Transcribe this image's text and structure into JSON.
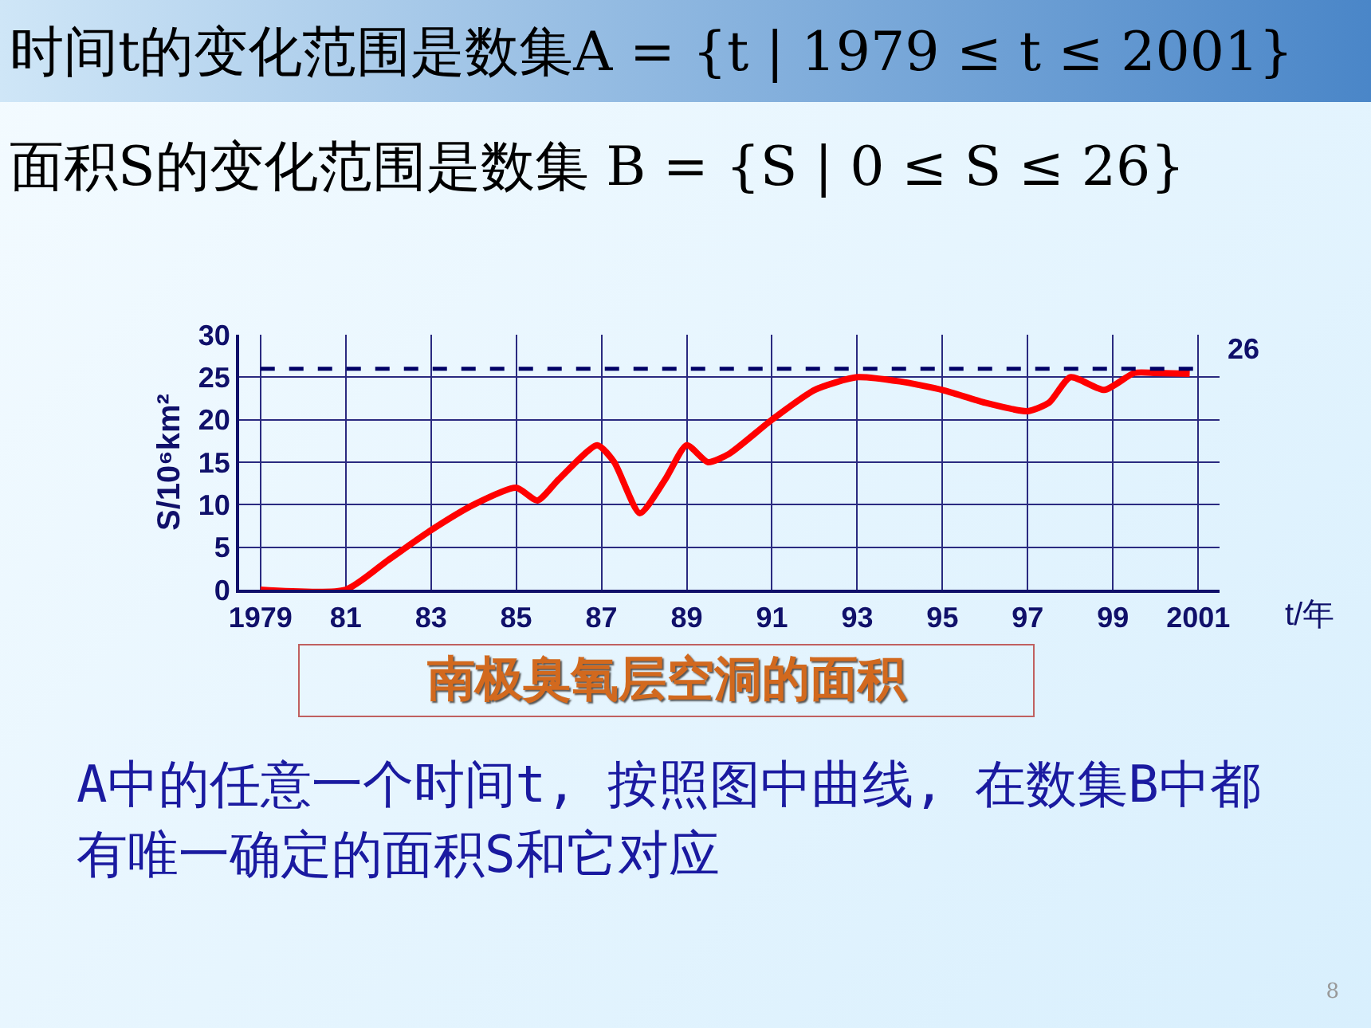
{
  "chart_data": {
    "type": "line",
    "title": "南极臭氧层空洞的面积",
    "xlabel": "t/年",
    "ylabel": "S/10⁶km²",
    "annotations": [
      "时间t的变化范围是数集A = {t | 1979 ≤ t ≤ 2001}",
      "面积S的变化范围是数集 B = {S | 0 ≤ S ≤ 26}",
      "A中的任意一个时间t, 按照图中曲线, 在数集B中都有唯一确定的面积S和它对应",
      "8"
    ],
    "series": [
      {
        "color": "#ff0000",
        "x": [
          1979,
          1981,
          1982,
          1983,
          1984,
          1985,
          1985.5,
          1986,
          1986.9,
          1987.3,
          1987.9,
          1988.5,
          1989,
          1989.5,
          1990,
          1991,
          1992,
          1993,
          1994,
          1995,
          1996,
          1997,
          1997.5,
          1998,
          1998.8,
          1999.5,
          2000,
          2000.8
        ],
        "values": [
          0,
          0,
          3.5,
          7,
          10,
          12,
          10.5,
          13,
          17,
          15,
          9,
          13,
          17,
          15,
          16,
          20,
          23.5,
          25,
          24.5,
          23.5,
          22,
          21,
          22,
          25,
          23.5,
          25.5,
          25.5,
          25.4
        ]
      }
    ],
    "xlim": [
      1978.5,
      2001.5
    ],
    "ylim": [
      0,
      30
    ],
    "xticks": [
      1979,
      {
        "value": 1981,
        "label": "81"
      },
      {
        "value": 1983,
        "label": "83"
      },
      {
        "value": 1985,
        "label": "85"
      },
      {
        "value": 1987,
        "label": "87"
      },
      {
        "value": 1989,
        "label": "89"
      },
      {
        "value": 1991,
        "label": "91"
      },
      {
        "value": 1993,
        "label": "93"
      },
      {
        "value": 1995,
        "label": "95"
      },
      {
        "value": 1997,
        "label": "97"
      },
      {
        "value": 1999,
        "label": "99"
      },
      2001
    ],
    "yticks": [
      0,
      5,
      10,
      15,
      20,
      25,
      30
    ],
    "ref_lines": [
      {
        "axis": "y",
        "value": 26,
        "label": "26",
        "line_style": "dashed",
        "color": "#000066"
      }
    ],
    "grid": true,
    "marker": "none",
    "line_style": "solid"
  }
}
